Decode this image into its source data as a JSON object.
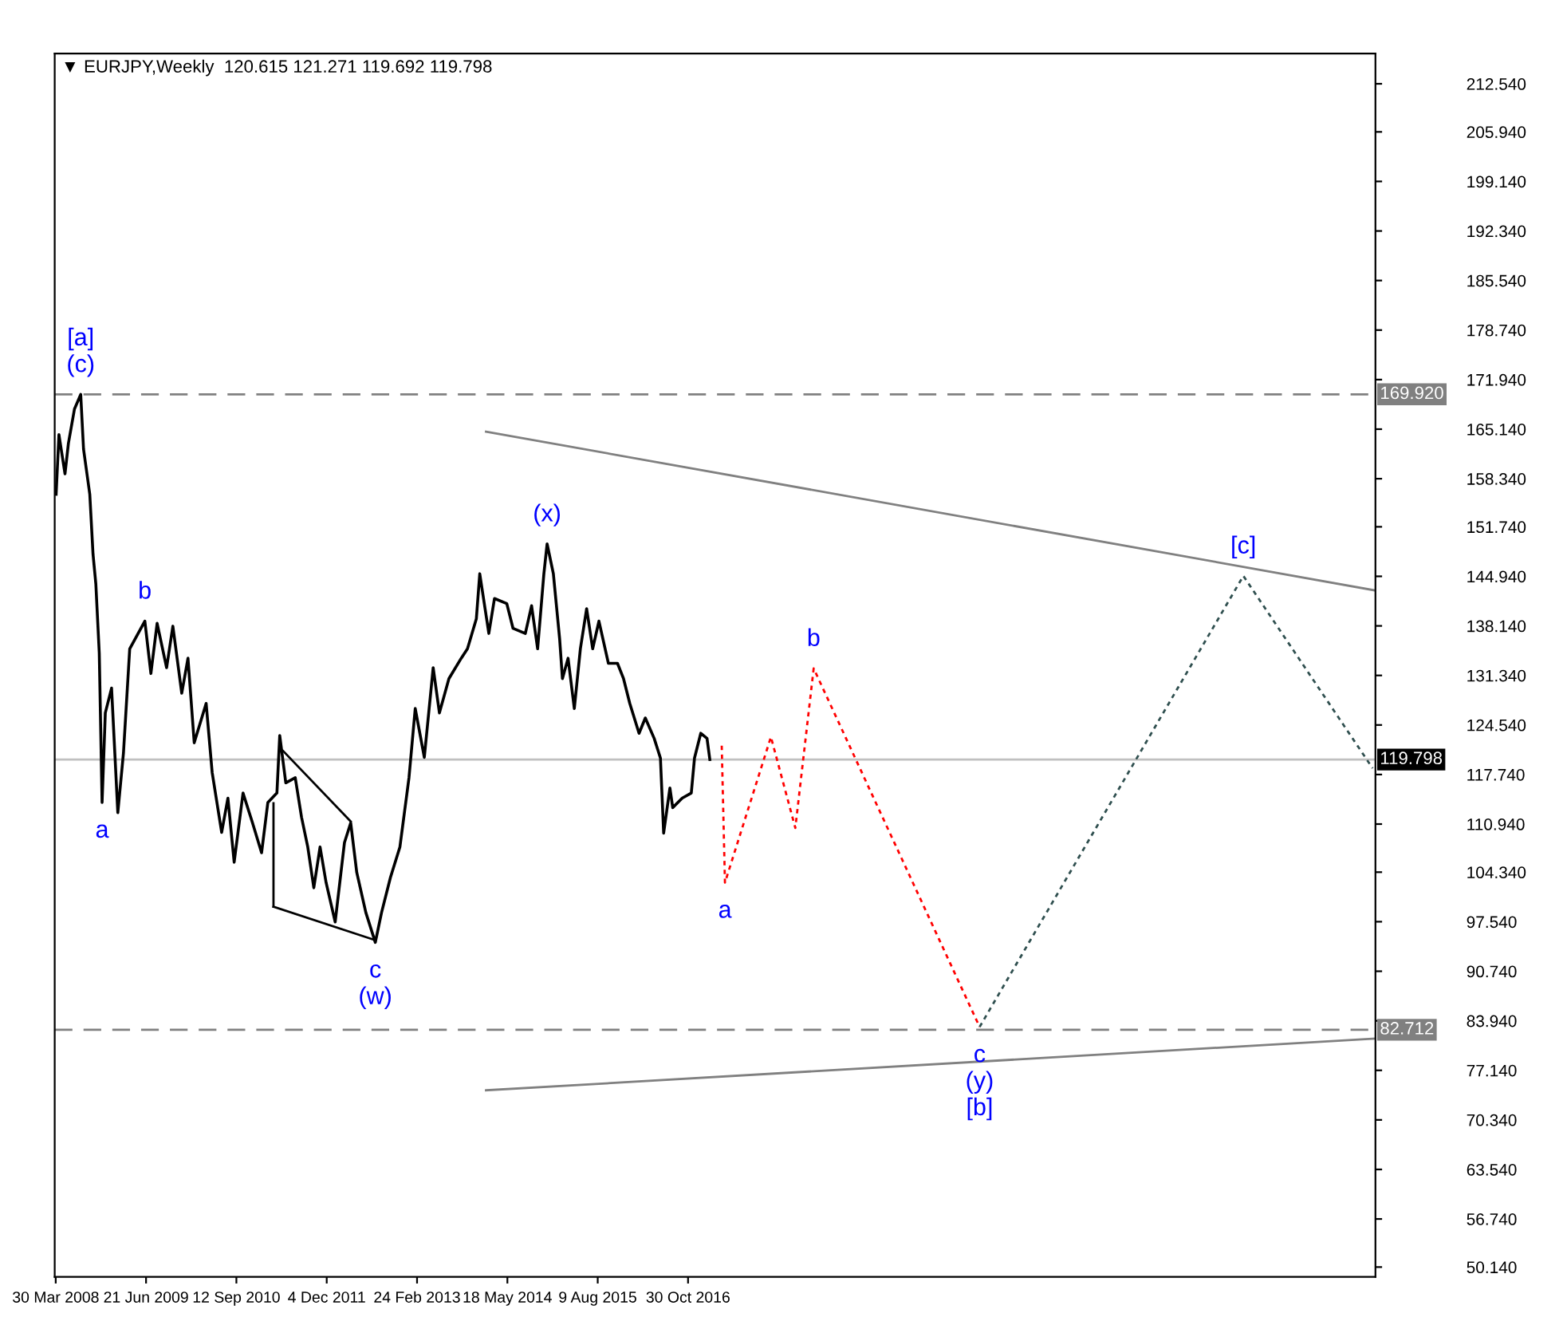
{
  "chart_data": {
    "type": "line",
    "title": "▼ EURJPY,Weekly  120.615 121.271 119.692 119.798",
    "xlim": [
      "2008-03-25",
      "2026-03-01"
    ],
    "xticks": [
      {
        "value": "2008-03-30",
        "label": "30 Mar 2008"
      },
      {
        "value": "2009-06-21",
        "label": "21 Jun 2009"
      },
      {
        "value": "2010-09-12",
        "label": "12 Sep 2010"
      },
      {
        "value": "2011-12-04",
        "label": "4 Dec 2011"
      },
      {
        "value": "2013-02-24",
        "label": "24 Feb 2013"
      },
      {
        "value": "2014-05-18",
        "label": "18 May 2014"
      },
      {
        "value": "2015-08-09",
        "label": "9 Aug 2015"
      },
      {
        "value": "2016-10-30",
        "label": "30 Oct 2016"
      }
    ],
    "ylim": [
      48.8,
      216.7
    ],
    "yticks": [
      {
        "value": 212.54,
        "label": "212.540"
      },
      {
        "value": 205.94,
        "label": "205.940"
      },
      {
        "value": 199.14,
        "label": "199.140"
      },
      {
        "value": 192.34,
        "label": "192.340"
      },
      {
        "value": 185.54,
        "label": "185.540"
      },
      {
        "value": 178.74,
        "label": "178.740"
      },
      {
        "value": 171.94,
        "label": "171.940"
      },
      {
        "value": 165.14,
        "label": "165.140"
      },
      {
        "value": 158.34,
        "label": "158.340"
      },
      {
        "value": 151.74,
        "label": "151.740"
      },
      {
        "value": 144.94,
        "label": "144.940"
      },
      {
        "value": 138.14,
        "label": "138.140"
      },
      {
        "value": 131.34,
        "label": "131.340"
      },
      {
        "value": 124.54,
        "label": "124.540"
      },
      {
        "value": 117.74,
        "label": "117.740"
      },
      {
        "value": 110.94,
        "label": "110.940"
      },
      {
        "value": 104.34,
        "label": "104.340"
      },
      {
        "value": 97.54,
        "label": "97.540"
      },
      {
        "value": 90.74,
        "label": "90.740"
      },
      {
        "value": 83.94,
        "label": "83.940"
      },
      {
        "value": 77.14,
        "label": "77.140"
      },
      {
        "value": 70.34,
        "label": "70.340"
      },
      {
        "value": 63.54,
        "label": "63.540"
      },
      {
        "value": 56.74,
        "label": "56.740"
      },
      {
        "value": 50.14,
        "label": "50.140"
      }
    ],
    "grid": false,
    "series": [
      {
        "color": "#000000",
        "line_style": "solid",
        "x": [
          "2008-04-01",
          "2008-04-15",
          "2008-05-15",
          "2008-06-01",
          "2008-07-01",
          "2008-08-01",
          "2008-08-15",
          "2008-09-15",
          "2008-10-01",
          "2008-10-15",
          "2008-11-01",
          "2008-11-15",
          "2008-12-01",
          "2009-01-01",
          "2009-02-01",
          "2009-03-01",
          "2009-04-01",
          "2009-06-15",
          "2009-07-15",
          "2009-08-15",
          "2009-10-01",
          "2009-11-01",
          "2009-12-15",
          "2010-01-15",
          "2010-02-15",
          "2010-04-15",
          "2010-05-15",
          "2010-07-01",
          "2010-08-01",
          "2010-09-01",
          "2010-10-15",
          "2010-12-01",
          "2011-01-15",
          "2011-02-15",
          "2011-04-01",
          "2011-04-15",
          "2011-05-15",
          "2011-07-01",
          "2011-08-01",
          "2011-09-01",
          "2011-10-01",
          "2011-11-01",
          "2011-12-01",
          "2012-01-15",
          "2012-03-01",
          "2012-04-01",
          "2012-05-01",
          "2012-06-15",
          "2012-08-01",
          "2012-09-01",
          "2012-10-15",
          "2012-12-01",
          "2013-01-15",
          "2013-02-15",
          "2013-04-01",
          "2013-05-15",
          "2013-06-15",
          "2013-08-01",
          "2013-10-01",
          "2013-11-01",
          "2013-12-15",
          "2014-01-01",
          "2014-02-15",
          "2014-03-15",
          "2014-05-15",
          "2014-06-15",
          "2014-08-15",
          "2014-09-15",
          "2014-10-15",
          "2014-11-15",
          "2014-12-01",
          "2015-01-01",
          "2015-02-01",
          "2015-02-15",
          "2015-03-15",
          "2015-04-15",
          "2015-05-15",
          "2015-06-15",
          "2015-07-15",
          "2015-08-15",
          "2015-10-01",
          "2015-11-15",
          "2015-12-15",
          "2016-01-15",
          "2016-03-01",
          "2016-04-01",
          "2016-05-15",
          "2016-06-15",
          "2016-07-01",
          "2016-08-01",
          "2016-08-15",
          "2016-10-01",
          "2016-11-15",
          "2016-12-01",
          "2017-01-01",
          "2017-02-01",
          "2017-02-15"
        ],
        "values": [
          156.2,
          164.4,
          159.0,
          163.2,
          167.9,
          169.9,
          162.4,
          156.2,
          148.0,
          143.9,
          134.4,
          113.9,
          126.2,
          129.6,
          112.5,
          120.7,
          135.0,
          138.8,
          131.6,
          138.5,
          132.4,
          138.1,
          128.9,
          133.7,
          122.1,
          127.5,
          118.0,
          109.8,
          114.5,
          105.7,
          115.2,
          111.1,
          107.0,
          113.9,
          115.2,
          123.1,
          116.6,
          117.3,
          111.9,
          107.8,
          102.2,
          107.8,
          102.9,
          97.5,
          108.4,
          111.1,
          104.3,
          98.8,
          94.7,
          98.8,
          103.6,
          107.8,
          117.3,
          126.8,
          120.1,
          132.4,
          126.2,
          130.9,
          133.7,
          135.0,
          139.1,
          145.3,
          137.1,
          141.9,
          141.2,
          137.8,
          137.1,
          140.9,
          135.0,
          145.3,
          149.4,
          145.3,
          136.4,
          130.9,
          133.7,
          126.8,
          135.0,
          140.5,
          135.0,
          138.8,
          133.0,
          133.0,
          130.9,
          127.5,
          123.4,
          125.5,
          122.7,
          120.0,
          109.7,
          115.9,
          113.2,
          114.5,
          115.2,
          120.0,
          123.4,
          122.7,
          119.8
        ]
      },
      {
        "color": "#ff0000",
        "line_style": "dotted",
        "x": [
          "2017-04-15",
          "2017-05-01",
          "2017-12-15",
          "2018-04-15",
          "2018-07-15",
          "2020-10-15"
        ],
        "values": [
          121.7,
          102.9,
          122.9,
          110.4,
          132.3,
          83.1
        ]
      },
      {
        "color": "#2f4f4f",
        "line_style": "dotted",
        "x": [
          "2020-10-15",
          "2024-05-15",
          "2026-02-15"
        ],
        "values": [
          83.1,
          145.0,
          118.6
        ]
      },
      {
        "color": "#808080",
        "line_style": "solid",
        "x": [
          "2014-02-01",
          "2026-03-01"
        ],
        "values": [
          164.8,
          143.0
        ]
      },
      {
        "color": "#808080",
        "line_style": "solid",
        "x": [
          "2014-02-01",
          "2026-03-01"
        ],
        "values": [
          74.4,
          81.5
        ]
      },
      {
        "color": "#000000",
        "line_style": "solid",
        "x": [
          "2011-05-01",
          "2012-04-01"
        ],
        "values": [
          121.0,
          111.3
        ]
      },
      {
        "color": "#000000",
        "line_style": "solid",
        "x": [
          "2011-03-15",
          "2011-03-15"
        ],
        "values": [
          113.8,
          99.6
        ]
      },
      {
        "color": "#000000",
        "line_style": "solid",
        "x": [
          "2011-03-15",
          "2012-08-01"
        ],
        "values": [
          99.6,
          95.0
        ]
      }
    ],
    "ref_lines": [
      {
        "axis": "y",
        "value": 169.92,
        "label": "169.920",
        "color": "#808080",
        "line_style": "dashed"
      },
      {
        "axis": "y",
        "value": 119.798,
        "label": "119.798",
        "color": "#c0c0c0",
        "line_style": "solid"
      },
      {
        "axis": "y",
        "value": 82.712,
        "label": "82.712",
        "color": "#808080",
        "line_style": "dashed"
      }
    ],
    "annotations": [
      {
        "text": "[a]",
        "x": "2008-08-01",
        "y": 169.9
      },
      {
        "text": "(c)",
        "x": "2008-08-01",
        "y": 169.9
      },
      {
        "text": "b",
        "x": "2009-06-15",
        "y": 138.8
      },
      {
        "text": "a",
        "x": "2008-11-15",
        "y": 113.9
      },
      {
        "text": "c",
        "x": "2012-08-01",
        "y": 94.7
      },
      {
        "text": "(w)",
        "x": "2012-08-01",
        "y": 94.7
      },
      {
        "text": "(x)",
        "x": "2014-12-01",
        "y": 149.4
      },
      {
        "text": "a",
        "x": "2017-05-01",
        "y": 102.9
      },
      {
        "text": "b",
        "x": "2018-07-15",
        "y": 132.3
      },
      {
        "text": "c",
        "x": "2020-10-15",
        "y": 83.1
      },
      {
        "text": "(y)",
        "x": "2020-10-15",
        "y": 83.1
      },
      {
        "text": "[b]",
        "x": "2020-10-15",
        "y": 83.1
      },
      {
        "text": "[c]",
        "x": "2024-05-15",
        "y": 145.0
      }
    ]
  }
}
